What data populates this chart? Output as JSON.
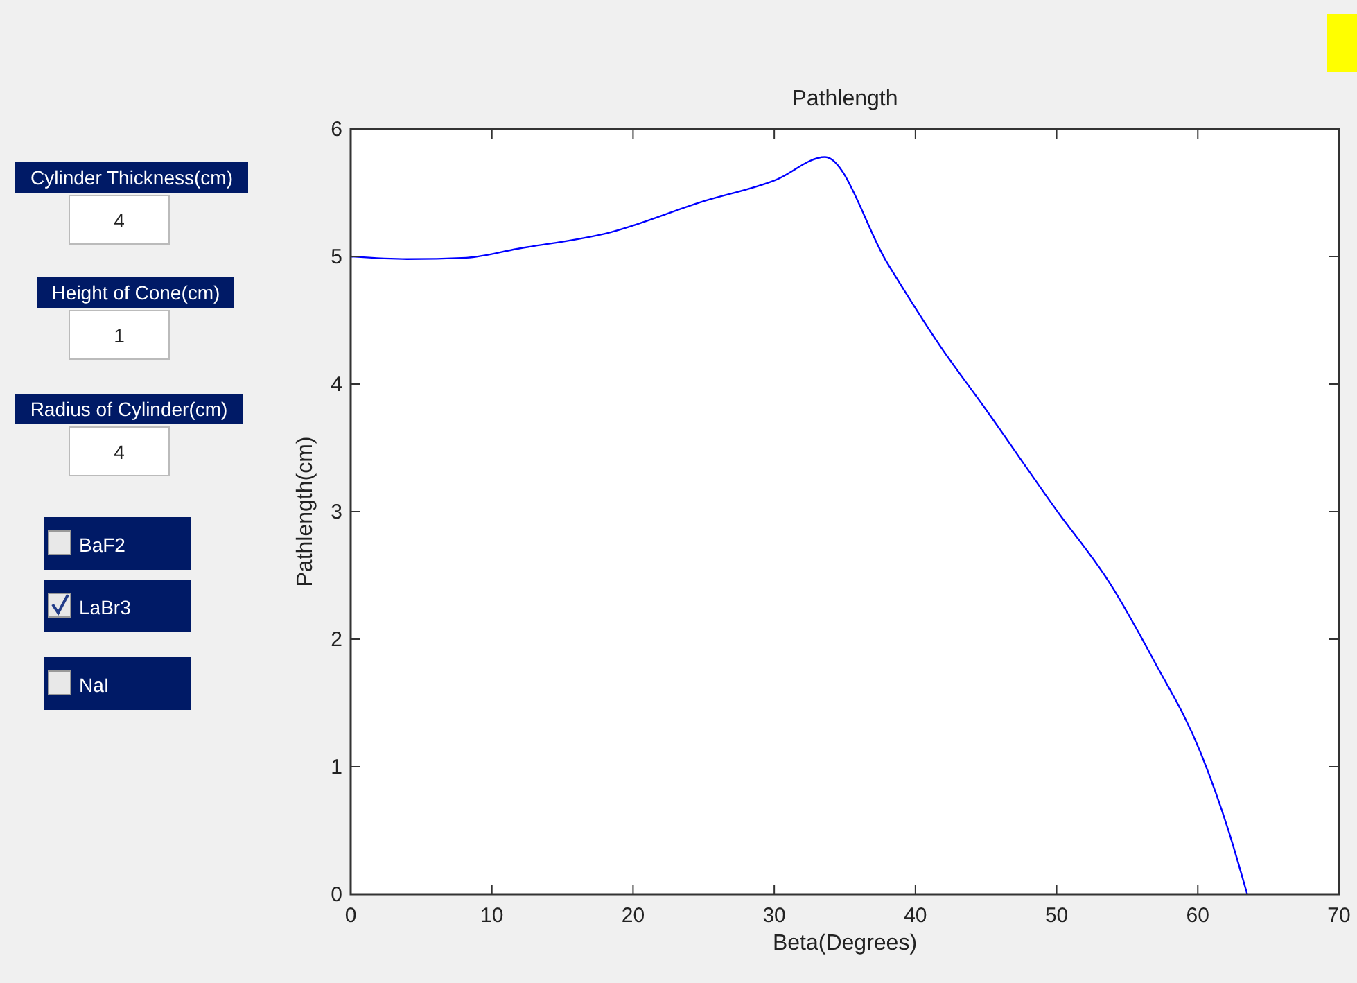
{
  "chart_data": {
    "type": "line",
    "title": "Pathlength",
    "xlabel": "Beta(Degrees)",
    "ylabel": "Pathlength(cm)",
    "x": [
      0,
      4,
      8.2,
      11.8,
      18.4,
      24.9,
      30.1,
      33.6,
      38.0,
      41.8,
      44.8,
      50.0,
      53.7,
      56.9,
      60.2,
      62.2,
      63.5
    ],
    "series": [
      {
        "color": "#0000ff",
        "values": [
          5.0,
          4.98,
          4.99,
          5.06,
          5.19,
          5.43,
          5.6,
          5.78,
          4.95,
          4.29,
          3.83,
          3.01,
          2.45,
          1.83,
          1.11,
          0.49,
          0
        ]
      }
    ],
    "xlim": [
      0,
      70
    ],
    "xticks": [
      0,
      10,
      20,
      30,
      40,
      50,
      60,
      70
    ],
    "ylim": [
      0,
      6
    ],
    "yticks": [
      0,
      1,
      2,
      3,
      4,
      5,
      6
    ],
    "grid": false,
    "marker": "none",
    "line_style": "solid",
    "annotations": [
      "Cylinder Thickness(cm)",
      "4",
      "Height of Cone(cm)",
      "1",
      "Radius of Cylinder(cm)",
      "4",
      "BaF2",
      "LaBr3",
      "NaI"
    ]
  }
}
